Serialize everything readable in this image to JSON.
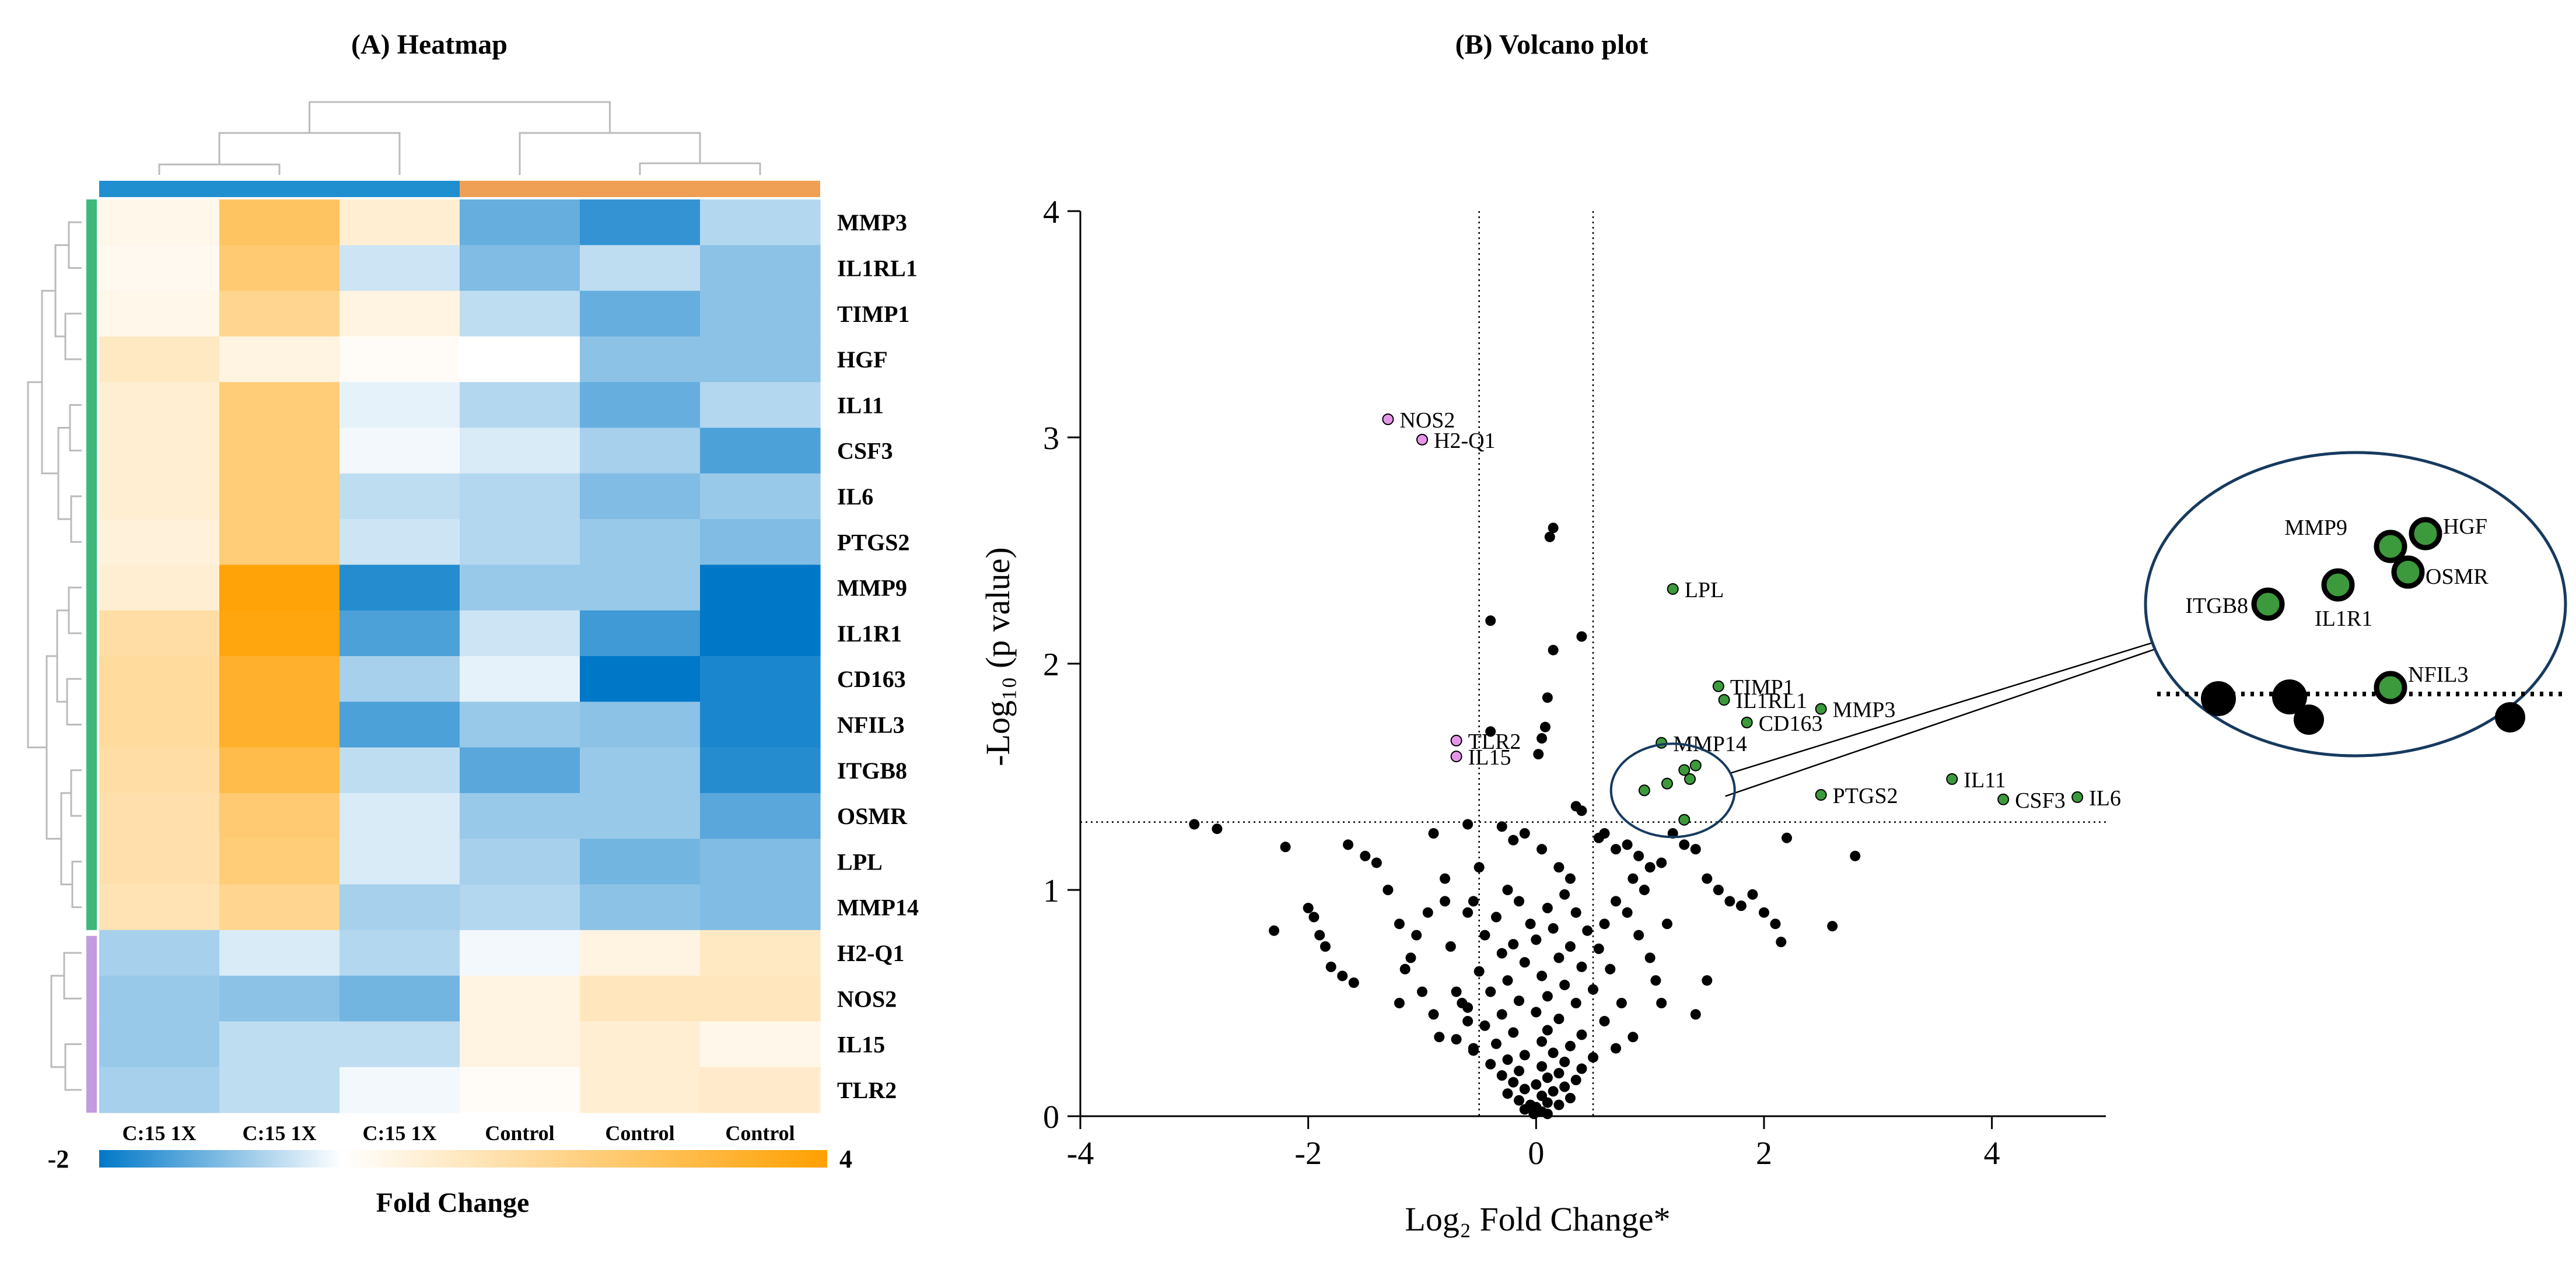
{
  "panels": {
    "heatmap_title": "(A) Heatmap",
    "volcano_title": "(B) Volcano plot"
  },
  "chart_data": [
    {
      "type": "heatmap",
      "title": "(A) Heatmap",
      "genes": [
        "MMP3",
        "IL1RL1",
        "TIMP1",
        "HGF",
        "IL11",
        "CSF3",
        "IL6",
        "PTGS2",
        "MMP9",
        "IL1R1",
        "CD163",
        "NFIL3",
        "ITGB8",
        "OSMR",
        "LPL",
        "MMP14",
        "H2-Q1",
        "NOS2",
        "IL15",
        "TLR2"
      ],
      "columns": [
        "C:15 1X",
        "C:15 1X",
        "C:15 1X",
        "Control",
        "Control",
        "Control"
      ],
      "values": [
        [
          0.3,
          2.1,
          0.6,
          -1.2,
          -1.6,
          -0.6
        ],
        [
          0.2,
          1.9,
          -0.4,
          -1.0,
          -0.5,
          -0.9
        ],
        [
          0.3,
          1.5,
          0.4,
          -0.5,
          -1.2,
          -0.9
        ],
        [
          0.8,
          0.4,
          0.1,
          0.0,
          -0.9,
          -0.9
        ],
        [
          0.6,
          1.8,
          -0.2,
          -0.6,
          -1.2,
          -0.6
        ],
        [
          0.6,
          1.8,
          -0.1,
          -0.3,
          -0.7,
          -1.4
        ],
        [
          0.6,
          1.8,
          -0.5,
          -0.6,
          -1.0,
          -0.8
        ],
        [
          0.5,
          1.8,
          -0.4,
          -0.6,
          -0.8,
          -1.0
        ],
        [
          0.6,
          3.3,
          -1.7,
          -0.8,
          -0.8,
          -2.0
        ],
        [
          1.2,
          3.2,
          -1.4,
          -0.4,
          -1.5,
          -2.0
        ],
        [
          1.3,
          2.8,
          -0.7,
          -0.2,
          -2.0,
          -1.8
        ],
        [
          1.3,
          2.8,
          -1.4,
          -0.8,
          -0.9,
          -1.8
        ],
        [
          1.2,
          2.4,
          -0.5,
          -1.3,
          -0.8,
          -1.7
        ],
        [
          1.1,
          1.9,
          -0.3,
          -0.8,
          -0.8,
          -1.3
        ],
        [
          1.1,
          1.8,
          -0.3,
          -0.7,
          -1.1,
          -1.0
        ],
        [
          1.0,
          1.5,
          -0.7,
          -0.6,
          -0.9,
          -1.0
        ],
        [
          -0.7,
          -0.3,
          -0.6,
          -0.1,
          0.4,
          0.8
        ],
        [
          -0.8,
          -0.9,
          -1.1,
          0.4,
          0.9,
          0.9
        ],
        [
          -0.8,
          -0.5,
          -0.5,
          0.4,
          0.6,
          0.3
        ],
        [
          -0.7,
          -0.5,
          -0.1,
          0.1,
          0.6,
          0.7
        ]
      ],
      "colorbar": {
        "min_label": "-2",
        "max_label": "4",
        "label": "Fold Change",
        "min": -2,
        "max": 4
      },
      "scale_colors": {
        "negative": "#0078c8",
        "zero": "#ffffff",
        "positive": "#ffa000"
      },
      "column_group_colors": {
        "treated": "#1f8fd0",
        "control": "#f0a055"
      },
      "row_group_colors": {
        "up": "#3dba7a",
        "down": "#c59be0"
      }
    },
    {
      "type": "scatter",
      "title": "(B) Volcano plot",
      "xlabel": "Log₂ Fold Change*",
      "ylabel": "-Log₁₀ (p value)",
      "xlim": [
        -4,
        5
      ],
      "ylim": [
        0,
        4
      ],
      "xticks": [
        -4,
        -2,
        0,
        2,
        4
      ],
      "yticks": [
        0,
        1,
        2,
        3,
        4
      ],
      "x_threshold": [
        -0.5,
        0.5
      ],
      "y_threshold": 1.3,
      "colors": {
        "up": "#3c9a3c",
        "down": "#e595e8",
        "background": "#000000"
      },
      "highlighted_up": [
        {
          "label": "LPL",
          "x": 1.2,
          "y": 2.33
        },
        {
          "label": "TIMP1",
          "x": 1.6,
          "y": 1.9
        },
        {
          "label": "IL1RL1",
          "x": 1.65,
          "y": 1.84
        },
        {
          "label": "MMP3",
          "x": 2.5,
          "y": 1.8
        },
        {
          "label": "CD163",
          "x": 1.85,
          "y": 1.74
        },
        {
          "label": "MMP14",
          "x": 1.1,
          "y": 1.65
        },
        {
          "label": "PTGS2",
          "x": 2.5,
          "y": 1.42
        },
        {
          "label": "IL11",
          "x": 3.65,
          "y": 1.49
        },
        {
          "label": "CSF3",
          "x": 4.1,
          "y": 1.4
        },
        {
          "label": "IL6",
          "x": 4.75,
          "y": 1.41
        }
      ],
      "cluster_up": [
        {
          "label": "MMP9",
          "x": 1.3,
          "y": 1.53
        },
        {
          "label": "HGF",
          "x": 1.4,
          "y": 1.55
        },
        {
          "label": "OSMR",
          "x": 1.35,
          "y": 1.49
        },
        {
          "label": "IL1R1",
          "x": 1.15,
          "y": 1.47
        },
        {
          "label": "ITGB8",
          "x": 0.95,
          "y": 1.44
        },
        {
          "label": "NFIL3",
          "x": 1.3,
          "y": 1.31
        }
      ],
      "highlighted_down": [
        {
          "label": "NOS2",
          "x": -1.3,
          "y": 3.08
        },
        {
          "label": "H2-Q1",
          "x": -1.0,
          "y": 2.99
        },
        {
          "label": "TLR2",
          "x": -0.7,
          "y": 1.66
        },
        {
          "label": "IL15",
          "x": -0.7,
          "y": 1.59
        }
      ],
      "background_points": [
        [
          0.15,
          2.6
        ],
        [
          0.12,
          2.56
        ],
        [
          -0.4,
          2.19
        ],
        [
          0.4,
          2.12
        ],
        [
          0.15,
          2.06
        ],
        [
          0.1,
          1.85
        ],
        [
          -0.4,
          1.7
        ],
        [
          0.08,
          1.72
        ],
        [
          0.05,
          1.67
        ],
        [
          0.02,
          1.6
        ],
        [
          0.35,
          1.37
        ],
        [
          0.4,
          1.35
        ],
        [
          0.6,
          1.25
        ],
        [
          0.55,
          1.23
        ],
        [
          0.7,
          1.18
        ],
        [
          0.8,
          1.2
        ],
        [
          0.9,
          1.15
        ],
        [
          1.0,
          1.1
        ],
        [
          1.1,
          1.12
        ],
        [
          1.2,
          1.25
        ],
        [
          1.3,
          1.2
        ],
        [
          1.4,
          1.18
        ],
        [
          1.5,
          1.05
        ],
        [
          1.6,
          1.0
        ],
        [
          1.7,
          0.95
        ],
        [
          1.8,
          0.93
        ],
        [
          1.9,
          0.98
        ],
        [
          2.0,
          0.9
        ],
        [
          2.1,
          0.85
        ],
        [
          2.2,
          1.23
        ],
        [
          2.8,
          1.15
        ],
        [
          2.6,
          0.84
        ],
        [
          2.15,
          0.77
        ],
        [
          1.5,
          0.6
        ],
        [
          1.4,
          0.45
        ],
        [
          -3.0,
          1.29
        ],
        [
          -2.8,
          1.27
        ],
        [
          -2.3,
          0.82
        ],
        [
          -2.2,
          1.19
        ],
        [
          -2.0,
          0.92
        ],
        [
          -1.95,
          0.88
        ],
        [
          -1.9,
          0.8
        ],
        [
          -1.85,
          0.75
        ],
        [
          -1.8,
          0.66
        ],
        [
          -1.7,
          0.62
        ],
        [
          -1.6,
          0.59
        ],
        [
          -1.5,
          1.15
        ],
        [
          -1.4,
          1.12
        ],
        [
          -1.3,
          1.0
        ],
        [
          -1.2,
          0.85
        ],
        [
          -1.1,
          0.7
        ],
        [
          -1.0,
          0.55
        ],
        [
          -0.9,
          0.45
        ],
        [
          -0.85,
          0.35
        ],
        [
          -0.8,
          0.95
        ],
        [
          -0.75,
          0.75
        ],
        [
          -0.7,
          0.55
        ],
        [
          -0.65,
          0.5
        ],
        [
          -0.6,
          0.42
        ],
        [
          -0.55,
          0.3
        ],
        [
          -1.65,
          1.2
        ],
        [
          -0.9,
          1.25
        ],
        [
          -0.6,
          0.9
        ],
        [
          -0.6,
          1.29
        ],
        [
          -0.3,
          1.28
        ],
        [
          -0.2,
          1.22
        ],
        [
          -0.1,
          1.25
        ],
        [
          0.05,
          1.18
        ],
        [
          0.2,
          1.1
        ],
        [
          0.3,
          1.05
        ],
        [
          -0.25,
          1.0
        ],
        [
          0.25,
          0.98
        ],
        [
          -0.15,
          0.95
        ],
        [
          0.1,
          0.92
        ],
        [
          0.35,
          0.9
        ],
        [
          -0.35,
          0.88
        ],
        [
          -0.05,
          0.85
        ],
        [
          0.15,
          0.83
        ],
        [
          0.45,
          0.82
        ],
        [
          -0.45,
          0.8
        ],
        [
          0.0,
          0.78
        ],
        [
          -0.2,
          0.76
        ],
        [
          0.3,
          0.75
        ],
        [
          0.55,
          0.74
        ],
        [
          -0.3,
          0.72
        ],
        [
          0.2,
          0.7
        ],
        [
          -0.1,
          0.68
        ],
        [
          0.4,
          0.66
        ],
        [
          0.65,
          0.65
        ],
        [
          -0.5,
          0.64
        ],
        [
          0.05,
          0.62
        ],
        [
          -0.25,
          0.6
        ],
        [
          0.25,
          0.58
        ],
        [
          0.5,
          0.56
        ],
        [
          -0.4,
          0.55
        ],
        [
          0.1,
          0.53
        ],
        [
          -0.15,
          0.51
        ],
        [
          0.35,
          0.5
        ],
        [
          0.75,
          0.5
        ],
        [
          -0.6,
          0.48
        ],
        [
          0.0,
          0.46
        ],
        [
          -0.3,
          0.45
        ],
        [
          0.2,
          0.43
        ],
        [
          0.6,
          0.42
        ],
        [
          -0.45,
          0.4
        ],
        [
          0.1,
          0.38
        ],
        [
          -0.2,
          0.37
        ],
        [
          0.4,
          0.36
        ],
        [
          0.85,
          0.35
        ],
        [
          -0.7,
          0.34
        ],
        [
          0.05,
          0.33
        ],
        [
          -0.35,
          0.32
        ],
        [
          0.3,
          0.31
        ],
        [
          0.7,
          0.3
        ],
        [
          -0.55,
          0.29
        ],
        [
          0.15,
          0.28
        ],
        [
          -0.1,
          0.27
        ],
        [
          0.5,
          0.26
        ],
        [
          -0.25,
          0.25
        ],
        [
          0.25,
          0.24
        ],
        [
          -0.4,
          0.23
        ],
        [
          0.05,
          0.22
        ],
        [
          0.4,
          0.21
        ],
        [
          -0.15,
          0.2
        ],
        [
          0.2,
          0.19
        ],
        [
          -0.3,
          0.18
        ],
        [
          0.1,
          0.17
        ],
        [
          0.35,
          0.16
        ],
        [
          -0.2,
          0.15
        ],
        [
          0.0,
          0.14
        ],
        [
          0.25,
          0.13
        ],
        [
          -0.1,
          0.12
        ],
        [
          0.15,
          0.11
        ],
        [
          -0.25,
          0.1
        ],
        [
          0.05,
          0.09
        ],
        [
          0.3,
          0.08
        ],
        [
          -0.15,
          0.07
        ],
        [
          0.1,
          0.06
        ],
        [
          -0.05,
          0.05
        ],
        [
          0.2,
          0.05
        ],
        [
          0.0,
          0.04
        ],
        [
          -0.1,
          0.03
        ],
        [
          0.05,
          0.02
        ],
        [
          0.1,
          0.01
        ],
        [
          -0.02,
          0.01
        ],
        [
          0.8,
          0.9
        ],
        [
          0.9,
          0.8
        ],
        [
          1.0,
          0.7
        ],
        [
          1.05,
          0.6
        ],
        [
          1.1,
          0.5
        ],
        [
          1.15,
          0.85
        ],
        [
          0.95,
          1.0
        ],
        [
          0.85,
          1.05
        ],
        [
          0.7,
          0.95
        ],
        [
          0.6,
          0.85
        ],
        [
          -0.8,
          1.05
        ],
        [
          -0.95,
          0.9
        ],
        [
          -1.05,
          0.8
        ],
        [
          -1.15,
          0.65
        ],
        [
          -1.2,
          0.5
        ],
        [
          -0.5,
          1.1
        ],
        [
          -0.55,
          0.95
        ]
      ]
    }
  ]
}
